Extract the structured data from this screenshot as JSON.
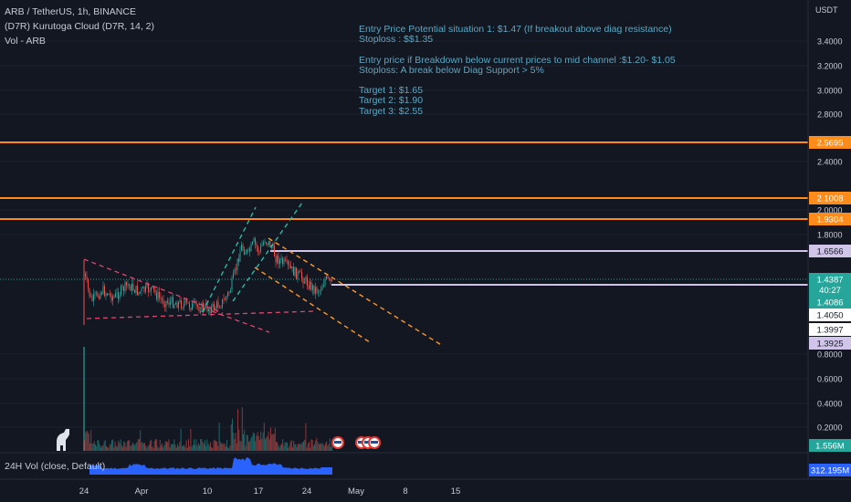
{
  "legend": {
    "symbol": "ARB / TetherUS, 1h, BINANCE",
    "indicator": "(D7R) Kurutoga Cloud (D7R, 14, 2)",
    "volume": "Vol - ARB",
    "vol24h": "24H Vol (close, Default)"
  },
  "currency": "USDT",
  "notes": [
    "Entry Price Potential situation 1: $1.47 (If breakout above diag resistance)",
    "Stoploss : $$1.35",
    "",
    "Entry price if Breakdown below current prices to mid channel :$1.20- $1.05",
    "Stoploss: A break below Diag Support > 5%",
    "",
    "Target 1: $1.65",
    "Target 2: $1.90",
    "Target 3: $2.55"
  ],
  "colors": {
    "background": "#131722",
    "orange": "#ff8c1a",
    "lavender": "#d1c4e9",
    "green": "#26a69a",
    "red": "#ef5350",
    "pink_dash": "#e0466f",
    "teal_dash": "#26c6b0",
    "vol_blue": "#2962ff",
    "text_blue": "#5aa7c2"
  },
  "chart_data": {
    "type": "candlestick",
    "price_axis": {
      "ticks": [
        "3.4000",
        "3.2000",
        "3.0000",
        "2.8000",
        "2.4000",
        "2.0000",
        "1.8000",
        "0.8000",
        "0.6000",
        "0.4000",
        "0.2000"
      ],
      "ylim": [
        0.05,
        3.6
      ]
    },
    "time_axis": {
      "ticks": [
        "24",
        "Apr",
        "10",
        "17",
        "24",
        "May",
        "8",
        "15"
      ]
    },
    "horizontal_lines": [
      {
        "price": 2.5695,
        "label": "2.5695",
        "color": "orange"
      },
      {
        "price": 2.1008,
        "label": "2.1008",
        "color": "orange"
      },
      {
        "price": 1.9304,
        "label": "1.9304",
        "color": "orange"
      },
      {
        "price": 1.6566,
        "label": "1.6566",
        "color": "lavender"
      },
      {
        "price": 1.4086,
        "label": "1.4086",
        "color": "lavender_line"
      }
    ],
    "price_labels": [
      {
        "label": "1.4387",
        "sub": "40:27",
        "kind": "green"
      },
      {
        "label": "1.4086",
        "kind": "teal"
      },
      {
        "label": "1.4050",
        "kind": "white"
      },
      {
        "label": "1.3997",
        "kind": "white"
      },
      {
        "label": "1.3925",
        "kind": "lavender"
      }
    ],
    "volume_label": "1.556M",
    "vol24h_label": "312.195M"
  }
}
